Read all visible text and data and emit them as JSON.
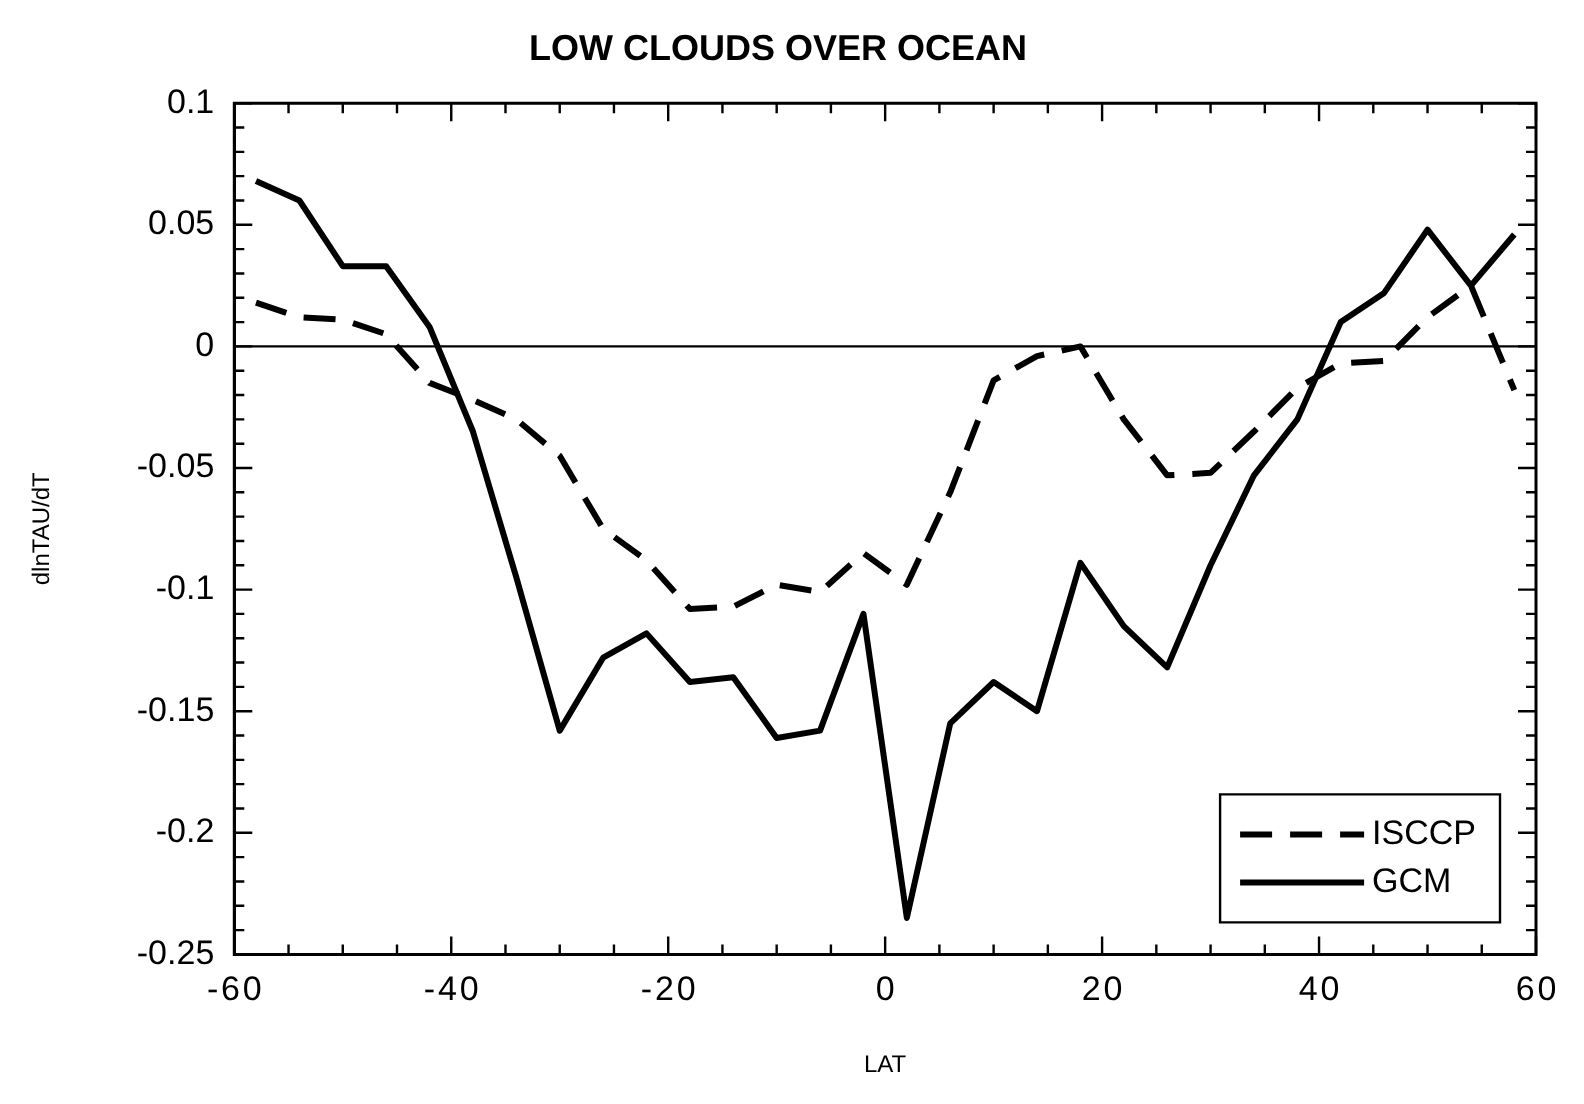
{
  "chart_data": {
    "type": "line",
    "title": "LOW CLOUDS OVER OCEAN",
    "xlabel": "LAT",
    "ylabel": "dlnTAU/dT",
    "x": [
      -58,
      -54,
      -50,
      -46,
      -42,
      -38,
      -34,
      -30,
      -26,
      -22,
      -18,
      -14,
      -10,
      -6,
      -2,
      2,
      6,
      10,
      14,
      18,
      22,
      26,
      30,
      34,
      38,
      42,
      46,
      50,
      54,
      58
    ],
    "series": [
      {
        "name": "ISCCP",
        "color": "#000000",
        "line_style": "dashed",
        "values": [
          0.018,
          0.012,
          0.011,
          0.005,
          -0.015,
          -0.022,
          -0.03,
          -0.045,
          -0.075,
          -0.088,
          -0.108,
          -0.107,
          -0.098,
          -0.101,
          -0.085,
          -0.098,
          -0.06,
          -0.014,
          -0.004,
          0,
          -0.03,
          -0.053,
          -0.052,
          -0.035,
          -0.017,
          -0.007,
          -0.006,
          0.012,
          0.025,
          -0.018
        ]
      },
      {
        "name": "GCM",
        "color": "#000000",
        "line_style": "solid",
        "values": [
          0.068,
          0.06,
          0.033,
          0.033,
          0.008,
          -0.035,
          -0.095,
          -0.158,
          -0.128,
          -0.118,
          -0.138,
          -0.136,
          -0.161,
          -0.158,
          -0.11,
          -0.235,
          -0.155,
          -0.138,
          -0.15,
          -0.089,
          -0.115,
          -0.132,
          -0.09,
          -0.053,
          -0.03,
          0.01,
          0.022,
          0.048,
          0.025,
          0.046
        ]
      }
    ],
    "xlim": [
      -60,
      60
    ],
    "xticks": [
      -60,
      {
        "value": -55,
        "label": null
      },
      {
        "value": -50,
        "label": null
      },
      {
        "value": -45,
        "label": null
      },
      -40,
      {
        "value": -35,
        "label": null
      },
      {
        "value": -30,
        "label": null
      },
      {
        "value": -25,
        "label": null
      },
      -20,
      {
        "value": -15,
        "label": null
      },
      {
        "value": -10,
        "label": null
      },
      {
        "value": -5,
        "label": null
      },
      0,
      {
        "value": 5,
        "label": null
      },
      {
        "value": 10,
        "label": null
      },
      {
        "value": 15,
        "label": null
      },
      20,
      {
        "value": 25,
        "label": null
      },
      {
        "value": 30,
        "label": null
      },
      {
        "value": 35,
        "label": null
      },
      40,
      {
        "value": 45,
        "label": null
      },
      {
        "value": 50,
        "label": null
      },
      {
        "value": 55,
        "label": null
      },
      60
    ],
    "ylim": [
      -0.25,
      0.1
    ],
    "yticks": [
      -0.25,
      {
        "value": -0.24,
        "label": null
      },
      {
        "value": -0.23,
        "label": null
      },
      {
        "value": -0.22,
        "label": null
      },
      {
        "value": -0.21,
        "label": null
      },
      -0.2,
      {
        "value": -0.19,
        "label": null
      },
      {
        "value": -0.18,
        "label": null
      },
      {
        "value": -0.17,
        "label": null
      },
      {
        "value": -0.16,
        "label": null
      },
      -0.15,
      {
        "value": -0.14,
        "label": null
      },
      {
        "value": -0.13,
        "label": null
      },
      {
        "value": -0.12,
        "label": null
      },
      {
        "value": -0.11,
        "label": null
      },
      -0.1,
      {
        "value": -0.09,
        "label": null
      },
      {
        "value": -0.08,
        "label": null
      },
      {
        "value": -0.07,
        "label": null
      },
      {
        "value": -0.06,
        "label": null
      },
      -0.05,
      {
        "value": -0.04,
        "label": null
      },
      {
        "value": -0.03,
        "label": null
      },
      {
        "value": -0.02,
        "label": null
      },
      {
        "value": -0.01,
        "label": null
      },
      0,
      {
        "value": 0.01,
        "label": null
      },
      {
        "value": 0.02,
        "label": null
      },
      {
        "value": 0.03,
        "label": null
      },
      {
        "value": 0.04,
        "label": null
      },
      0.05,
      {
        "value": 0.06,
        "label": null
      },
      {
        "value": 0.07,
        "label": null
      },
      {
        "value": 0.08,
        "label": null
      },
      {
        "value": 0.09,
        "label": null
      },
      0.1
    ],
    "ref_lines": [
      {
        "axis": "y",
        "value": 0,
        "color": "#000000",
        "line_style": "solid"
      }
    ],
    "legend": "bottom right",
    "marker": "none",
    "grid": false
  }
}
